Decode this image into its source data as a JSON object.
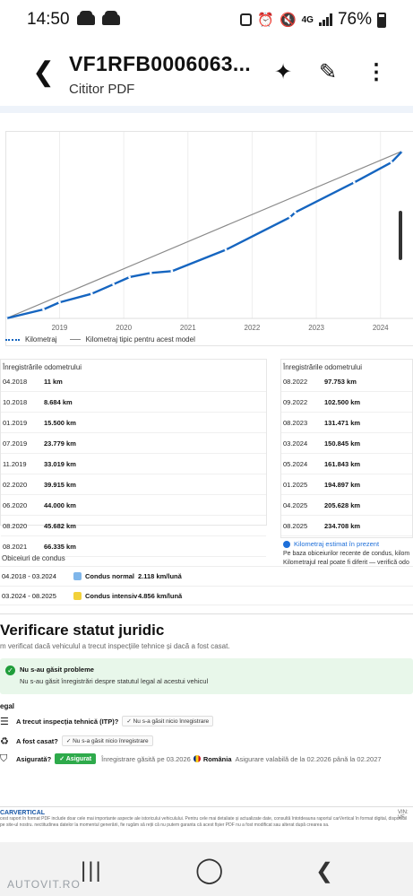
{
  "status": {
    "time": "14:50",
    "battery": "76%",
    "network": "4G"
  },
  "appbar": {
    "title": "VF1RFB0006063...",
    "subtitle": "Cititor PDF"
  },
  "chart_data": {
    "type": "line",
    "x_ticks": [
      "2019",
      "2020",
      "2021",
      "2022",
      "2023",
      "2024"
    ],
    "series": [
      {
        "name": "Kilometraj",
        "points": [
          [
            2018.25,
            11
          ],
          [
            2018.83,
            8684
          ],
          [
            2019.08,
            15500
          ],
          [
            2019.58,
            23779
          ],
          [
            2019.92,
            33019
          ],
          [
            2020.17,
            39915
          ],
          [
            2020.5,
            44000
          ],
          [
            2020.83,
            45682
          ],
          [
            2021.67,
            66335
          ],
          [
            2022.67,
            97753
          ],
          [
            2022.75,
            102500
          ],
          [
            2023.67,
            131471
          ],
          [
            2024.25,
            150845
          ],
          [
            2024.42,
            161843
          ]
        ]
      },
      {
        "name": "Kilometraj tipic pentru acest model",
        "points": [
          [
            2018.25,
            0
          ],
          [
            2024.42,
            161843
          ]
        ]
      }
    ],
    "xlim": [
      2018.25,
      2024.6
    ],
    "ylim": [
      0,
      170000
    ]
  },
  "odometer_left": {
    "title": "Înregistrările odometrului",
    "rows": [
      {
        "date": "04.2018",
        "km": "11 km"
      },
      {
        "date": "10.2018",
        "km": "8.684 km"
      },
      {
        "date": "01.2019",
        "km": "15.500 km"
      },
      {
        "date": "07.2019",
        "km": "23.779 km"
      },
      {
        "date": "11.2019",
        "km": "33.019 km"
      },
      {
        "date": "02.2020",
        "km": "39.915 km"
      },
      {
        "date": "06.2020",
        "km": "44.000 km"
      },
      {
        "date": "08.2020",
        "km": "45.682 km"
      },
      {
        "date": "08.2021",
        "km": "66.335 km"
      }
    ]
  },
  "odometer_right": {
    "title": "Înregistrările odometrului",
    "rows": [
      {
        "date": "08.2022",
        "km": "97.753 km"
      },
      {
        "date": "09.2022",
        "km": "102.500 km"
      },
      {
        "date": "08.2023",
        "km": "131.471 km"
      },
      {
        "date": "03.2024",
        "km": "150.845 km"
      },
      {
        "date": "05.2024",
        "km": "161.843 km"
      },
      {
        "date": "01.2025",
        "km": "194.897 km"
      },
      {
        "date": "04.2025",
        "km": "205.628 km"
      },
      {
        "date": "08.2025",
        "km": "234.708 km"
      }
    ],
    "estimate_label": "Kilometraj estimat în prezent",
    "note_1": "Pe baza obiceiurilor recente de condus, kilom",
    "note_2": "Kilometrajul real poate fi diferit — verifică odo"
  },
  "driving": {
    "title": "Obiceiuri de condus",
    "rows": [
      {
        "period": "04.2018 - 03.2024",
        "label": "Condus normal",
        "value": "2.118 km/lună",
        "color": "#7fb6ea"
      },
      {
        "period": "03.2024 - 08.2025",
        "label": "Condus intensiv",
        "value": "4.856 km/lună",
        "color": "#f2d13a"
      }
    ]
  },
  "legal": {
    "title": "Verificare statut juridic",
    "subtitle": "m verificat dacă vehiculul a trecut inspecțiile tehnice și dacă a fost casat.",
    "ok_title": "Nu s-au găsit probleme",
    "ok_text": "Nu s-au găsit înregistrări despre statutul legal al acestui vehicul",
    "section": "egal",
    "itp_q": "A trecut inspecția tehnică (ITP)?",
    "itp_v": "Nu s-a găsit nicio înregistrare",
    "casat_q": "A fost casat?",
    "casat_v": "Nu s-a găsit nicio înregistrare",
    "asig_q": "Asigurată?",
    "asig_badge": "Asigurat",
    "asig_found": "Înregistrare găsită pe 03.2026",
    "asig_country": "România",
    "asig_valid": "Asigurare valabilă de la 02.2026 până la 02.2027"
  },
  "footer": {
    "brand": "CARVERTICAL",
    "vin": "VIN: VF",
    "disclaimer": "cest raport în format PDF include doar cele mai importante aspecte ale istoricului vehiculului. Pentru cele mai detaliate și actualizate date, consultă întotdeauna raportul carVertical în format digital, disponibil pe site-ul nostru. nectitudinea datelor la momentul generării, fie rugăm să reții că nu putem garanta că acest fișier PDF nu a fost modificat sau alterat după crearea sa."
  },
  "watermark": "AUTOVIT.RO"
}
